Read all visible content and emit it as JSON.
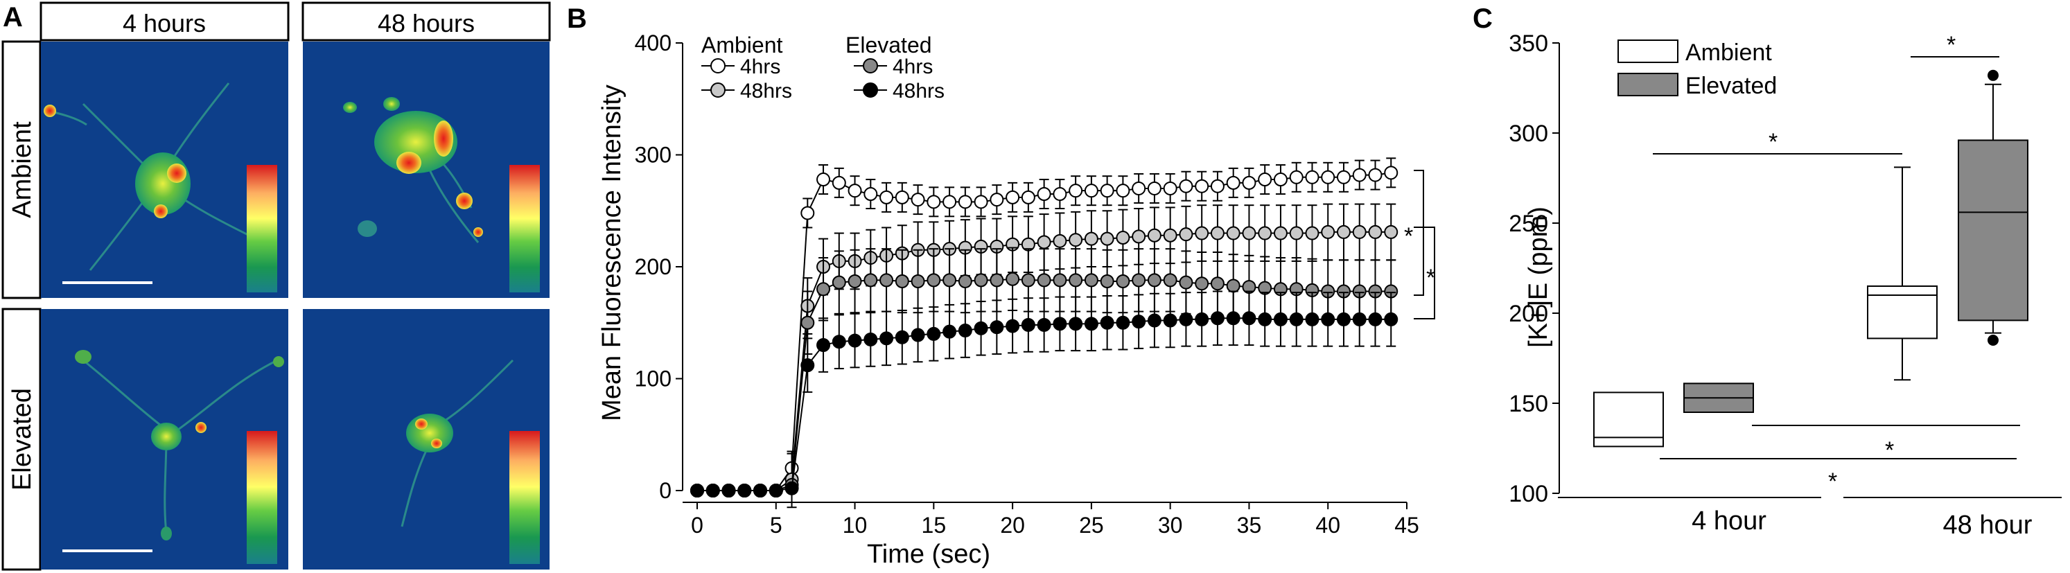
{
  "panels": {
    "a": {
      "letter": "A"
    },
    "b": {
      "letter": "B"
    },
    "c": {
      "letter": "C"
    }
  },
  "panel_a": {
    "col_labels": [
      "4 hours",
      "48 hours"
    ],
    "row_labels": [
      "Ambient",
      "Elevated"
    ],
    "colorscale": [
      "#d7191c",
      "#fdae61",
      "#ffff66",
      "#66cc44",
      "#1a9850",
      "#1a7f8c"
    ],
    "background_color": "#0d3f8a"
  },
  "chart_data": [
    {
      "type": "line",
      "panel": "B",
      "xlabel": "Time (sec)",
      "ylabel": "Mean Fluorescence Intensity",
      "xlim": [
        0,
        45
      ],
      "ylim": [
        0,
        400
      ],
      "xticks": [
        "0",
        "5",
        "10",
        "15",
        "20",
        "25",
        "30",
        "35",
        "40",
        "45"
      ],
      "yticks": [
        "0",
        "100",
        "200",
        "300",
        "400"
      ],
      "legend": {
        "group_titles": [
          "Ambient",
          "Elevated"
        ],
        "placement": "top-left"
      },
      "x": [
        0,
        1,
        2,
        3,
        4,
        5,
        6,
        7,
        8,
        9,
        10,
        11,
        12,
        13,
        14,
        15,
        16,
        17,
        18,
        19,
        20,
        21,
        22,
        23,
        24,
        25,
        26,
        27,
        28,
        29,
        30,
        31,
        32,
        33,
        34,
        35,
        36,
        37,
        38,
        39,
        40,
        41,
        42,
        43,
        44
      ],
      "series": [
        {
          "name": "4hrs",
          "group": "Ambient",
          "fill": "#ffffff",
          "error": 13,
          "values": [
            0,
            0,
            0,
            0,
            0,
            0,
            20,
            248,
            278,
            275,
            268,
            265,
            262,
            262,
            260,
            258,
            258,
            258,
            258,
            260,
            262,
            262,
            265,
            265,
            268,
            268,
            268,
            268,
            270,
            270,
            270,
            272,
            272,
            272,
            275,
            275,
            278,
            278,
            280,
            280,
            280,
            280,
            282,
            282,
            284
          ]
        },
        {
          "name": "48hrs",
          "group": "Ambient",
          "fill": "#c8c8c8",
          "error": 25,
          "values": [
            0,
            0,
            0,
            0,
            0,
            0,
            10,
            165,
            200,
            205,
            205,
            208,
            210,
            212,
            215,
            215,
            216,
            217,
            218,
            218,
            220,
            220,
            222,
            223,
            224,
            225,
            225,
            226,
            227,
            228,
            228,
            229,
            230,
            230,
            230,
            230,
            230,
            230,
            230,
            230,
            231,
            231,
            231,
            231,
            231
          ]
        },
        {
          "name": "4hrs",
          "group": "Elevated",
          "fill": "#888888",
          "error": 28,
          "values": [
            0,
            0,
            0,
            0,
            0,
            0,
            5,
            150,
            180,
            186,
            187,
            188,
            188,
            187,
            187,
            188,
            188,
            187,
            188,
            188,
            189,
            188,
            188,
            188,
            188,
            188,
            187,
            187,
            188,
            188,
            188,
            186,
            185,
            185,
            183,
            182,
            181,
            180,
            180,
            179,
            178,
            178,
            178,
            178,
            178
          ]
        },
        {
          "name": "48hrs",
          "group": "Elevated",
          "fill": "#000000",
          "error": 24,
          "values": [
            0,
            0,
            0,
            0,
            0,
            0,
            2,
            112,
            130,
            133,
            134,
            135,
            136,
            137,
            139,
            140,
            142,
            143,
            145,
            146,
            147,
            148,
            148,
            149,
            149,
            149,
            150,
            150,
            151,
            152,
            152,
            153,
            153,
            154,
            154,
            154,
            153,
            153,
            153,
            153,
            153,
            153,
            153,
            153,
            153
          ]
        }
      ],
      "significance": [
        "*",
        "*"
      ]
    },
    {
      "type": "box",
      "panel": "C",
      "ylabel": "[K+]E (ppm)",
      "ylim": [
        100,
        350
      ],
      "yticks": [
        "100",
        "150",
        "200",
        "250",
        "300",
        "350"
      ],
      "groups": [
        "4 hour",
        "48 hour"
      ],
      "legend": {
        "entries": [
          "Ambient",
          "Elevated"
        ],
        "placement": "top-left"
      },
      "series": [
        {
          "name": "Ambient",
          "fill": "#ffffff",
          "boxes": [
            {
              "group": "4 hour",
              "q1": 126,
              "median": 131,
              "q3": 156,
              "whisker_low": null,
              "whisker_high": null,
              "outliers": []
            },
            {
              "group": "48 hour",
              "q1": 186,
              "median": 210,
              "q3": 215,
              "whisker_low": 163,
              "whisker_high": 281,
              "outliers": []
            }
          ]
        },
        {
          "name": "Elevated",
          "fill": "#888888",
          "boxes": [
            {
              "group": "4 hour",
              "q1": 145,
              "median": 153,
              "q3": 161,
              "whisker_low": null,
              "whisker_high": null,
              "outliers": []
            },
            {
              "group": "48 hour",
              "q1": 196,
              "median": 256,
              "q3": 296,
              "whisker_low": 189,
              "whisker_high": 327,
              "outliers": [
                185,
                332
              ]
            }
          ]
        }
      ],
      "significance": [
        "*",
        "*",
        "*",
        "*"
      ]
    }
  ]
}
